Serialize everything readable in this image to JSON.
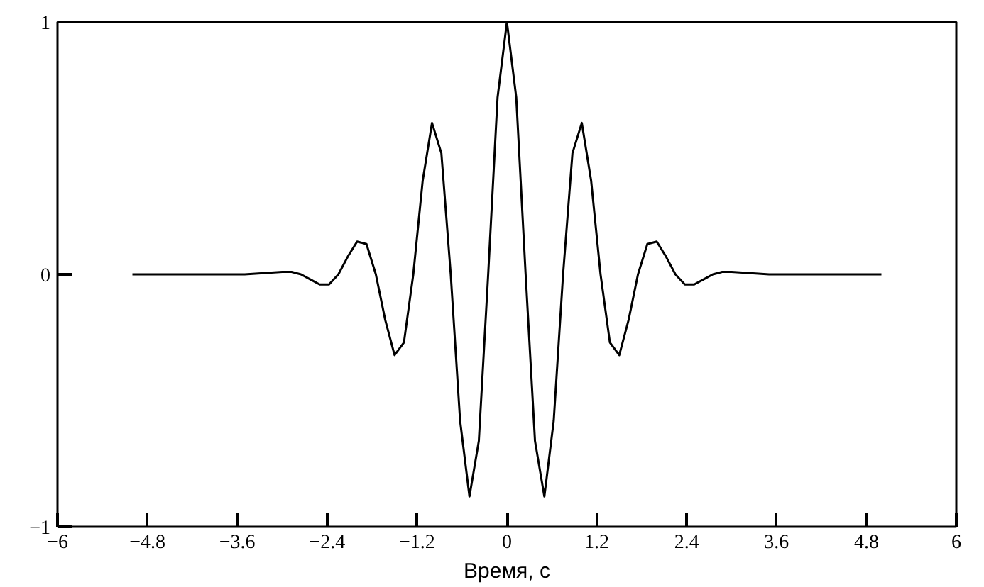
{
  "chart_data": {
    "type": "line",
    "xlabel": "Время, с",
    "x": [
      -5,
      -3.5,
      -3,
      -2.875,
      -2.75,
      -2.625,
      -2.5,
      -2.375,
      -2.25,
      -2.125,
      -2,
      -1.875,
      -1.75,
      -1.625,
      -1.5,
      -1.375,
      -1.25,
      -1.125,
      -1,
      -0.875,
      -0.75,
      -0.625,
      -0.5,
      -0.375,
      -0.25,
      -0.125,
      0,
      0.125,
      0.25,
      0.375,
      0.5,
      0.625,
      0.75,
      0.875,
      1,
      1.125,
      1.25,
      1.375,
      1.5,
      1.625,
      1.75,
      1.875,
      2,
      2.125,
      2.25,
      2.375,
      2.5,
      2.625,
      2.75,
      2.875,
      3,
      3.5,
      5
    ],
    "series": [
      {
        "color": "#000000",
        "values": [
          0,
          0,
          0.01,
          0.01,
          0,
          -0.02,
          -0.04,
          -0.04,
          0,
          0.07,
          0.13,
          0.12,
          0,
          -0.18,
          -0.32,
          -0.27,
          0,
          0.37,
          0.6,
          0.48,
          0,
          -0.58,
          -0.88,
          -0.66,
          0,
          0.7,
          1,
          0.7,
          0,
          -0.66,
          -0.88,
          -0.58,
          0,
          0.48,
          0.6,
          0.37,
          0,
          -0.27,
          -0.32,
          -0.18,
          0,
          0.12,
          0.13,
          0.07,
          0,
          -0.04,
          -0.04,
          -0.02,
          0,
          0.01,
          0.01,
          0,
          0
        ]
      }
    ],
    "xlim": [
      -6,
      6
    ],
    "ylim": [
      -1,
      1
    ],
    "xticks": [
      -6,
      -4.8,
      -3.6,
      -2.4,
      -1.2,
      0,
      1.2,
      2.4,
      3.6,
      4.8,
      6
    ],
    "yticks": [
      -1,
      0,
      1
    ],
    "grid": false,
    "marker": "none",
    "line_style": "solid"
  }
}
